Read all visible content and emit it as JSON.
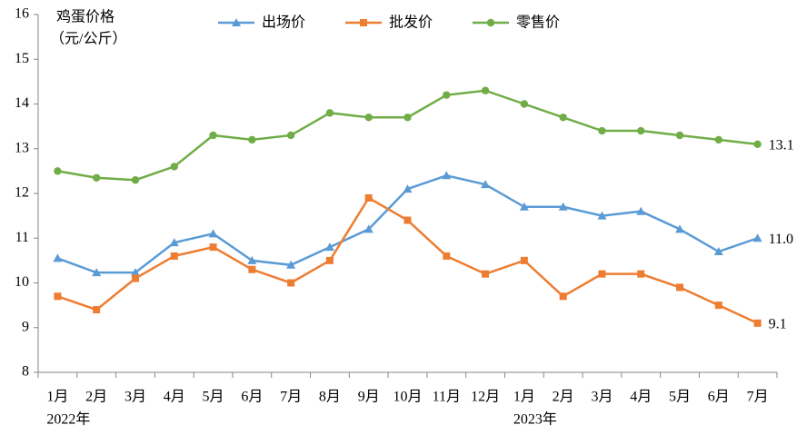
{
  "chart_data": {
    "type": "line",
    "y_label": [
      "鸡蛋价格",
      "（元/公斤）"
    ],
    "categories": [
      "1月",
      "2月",
      "3月",
      "4月",
      "5月",
      "6月",
      "7月",
      "8月",
      "9月",
      "10月",
      "11月",
      "12月",
      "1月",
      "2月",
      "3月",
      "4月",
      "5月",
      "6月",
      "7月"
    ],
    "years": [
      "2022年",
      null,
      null,
      null,
      null,
      null,
      null,
      null,
      null,
      null,
      null,
      null,
      "2023年",
      null,
      null,
      null,
      null,
      null,
      null
    ],
    "series": [
      {
        "name": "出场价",
        "color": "#5b9bd5",
        "marker": "triangle",
        "values": [
          10.55,
          10.23,
          10.23,
          10.9,
          11.1,
          10.5,
          10.4,
          10.8,
          11.2,
          12.1,
          12.4,
          12.2,
          11.7,
          11.7,
          11.5,
          11.6,
          11.2,
          10.7,
          11.0
        ],
        "value_labels": [
          null,
          null,
          null,
          null,
          null,
          null,
          null,
          null,
          null,
          null,
          null,
          null,
          null,
          null,
          null,
          null,
          null,
          null,
          "11.0"
        ]
      },
      {
        "name": "批发价",
        "color": "#ed7d31",
        "marker": "square",
        "values": [
          9.7,
          9.4,
          10.1,
          10.6,
          10.8,
          10.3,
          10.0,
          10.5,
          11.9,
          11.4,
          10.6,
          10.2,
          10.5,
          9.7,
          10.2,
          10.2,
          9.9,
          9.5,
          9.1
        ],
        "value_labels": [
          null,
          null,
          null,
          null,
          null,
          null,
          null,
          null,
          null,
          null,
          null,
          null,
          null,
          null,
          null,
          null,
          null,
          null,
          "9.1"
        ]
      },
      {
        "name": "零售价",
        "color": "#70ad47",
        "marker": "circle",
        "values": [
          12.5,
          12.35,
          12.3,
          12.6,
          13.3,
          13.2,
          13.3,
          13.8,
          13.7,
          13.7,
          14.2,
          14.3,
          14.0,
          13.7,
          13.4,
          13.4,
          13.3,
          13.2,
          13.1
        ],
        "value_labels": [
          null,
          null,
          null,
          null,
          null,
          null,
          null,
          null,
          null,
          null,
          null,
          null,
          null,
          null,
          null,
          null,
          null,
          null,
          "13.1"
        ]
      }
    ],
    "ylim": [
      8,
      16
    ],
    "yticks": [
      8,
      9,
      10,
      11,
      12,
      13,
      14,
      15,
      16
    ]
  }
}
